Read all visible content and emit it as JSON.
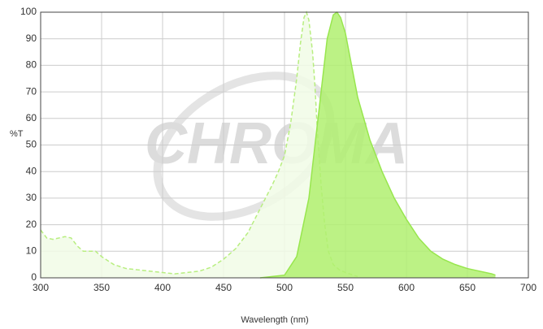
{
  "chart_data": {
    "type": "area",
    "watermark": "CHROMA",
    "xlabel": "Wavelength (nm)",
    "ylabel": "%T",
    "xlim": [
      300,
      700
    ],
    "ylim": [
      0,
      100
    ],
    "xticks": [
      300,
      350,
      400,
      450,
      500,
      550,
      600,
      650,
      700
    ],
    "yticks": [
      0,
      10,
      20,
      30,
      40,
      50,
      60,
      70,
      80,
      90,
      100
    ],
    "grid": true,
    "series": [
      {
        "color": "#b8ee80",
        "fill": "#f1fbe6",
        "line_style": "dashed",
        "x": [
          300,
          305,
          310,
          320,
          325,
          330,
          335,
          340,
          345,
          350,
          360,
          370,
          380,
          390,
          400,
          410,
          420,
          430,
          440,
          450,
          460,
          470,
          480,
          490,
          495,
          500,
          505,
          510,
          513,
          516,
          518,
          520,
          523,
          525,
          527,
          530,
          533,
          536,
          540,
          545,
          550,
          560
        ],
        "values": [
          18,
          15,
          14.5,
          15.5,
          15,
          12,
          10,
          10,
          10,
          8,
          5,
          3.5,
          3,
          2.5,
          2,
          1.5,
          2,
          2.5,
          4,
          7,
          11,
          17,
          26,
          35,
          40,
          46,
          58,
          75,
          88,
          98,
          100,
          97,
          85,
          72,
          55,
          35,
          20,
          10,
          5,
          3,
          2,
          0.5
        ]
      },
      {
        "color": "#98e64e",
        "fill": "#b0f070",
        "line_style": "solid",
        "x": [
          480,
          500,
          510,
          520,
          525,
          530,
          535,
          540,
          543,
          546,
          550,
          555,
          560,
          570,
          580,
          590,
          600,
          610,
          620,
          630,
          640,
          650,
          660,
          670,
          673
        ],
        "values": [
          0,
          1,
          8,
          30,
          50,
          70,
          90,
          99,
          100,
          98,
          92,
          80,
          68,
          52,
          40,
          30,
          22,
          15,
          10,
          7,
          5,
          3.5,
          2.5,
          1.5,
          1
        ]
      }
    ]
  }
}
